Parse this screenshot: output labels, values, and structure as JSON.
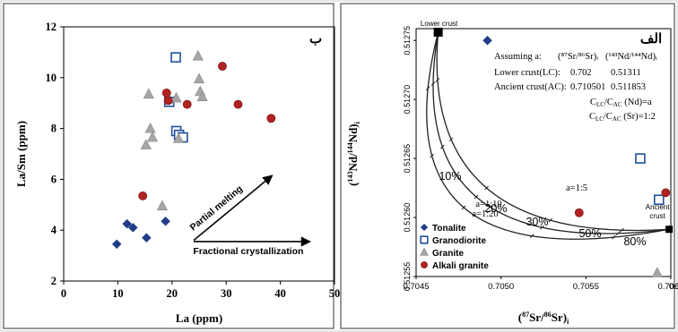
{
  "chart_data": [
    {
      "type": "scatter",
      "panel_label": "ب",
      "xlabel": "La (ppm)",
      "ylabel": "La/Sm (ppm)",
      "xlim": [
        0,
        50
      ],
      "ylim": [
        2,
        12
      ],
      "x_ticks": [
        "0",
        "10",
        "20",
        "30",
        "40",
        "50"
      ],
      "y_ticks": [
        "2",
        "4",
        "6",
        "8",
        "10",
        "12"
      ],
      "series": [
        {
          "marker": "filled-diamond",
          "color": "#1f3c88",
          "points": [
            [
              9.8,
              3.45
            ],
            [
              11.7,
              4.25
            ],
            [
              12.8,
              4.1
            ],
            [
              15.3,
              3.7
            ],
            [
              18.8,
              4.35
            ]
          ]
        },
        {
          "marker": "open-square",
          "color": "#1f4f9e",
          "points": [
            [
              19.5,
              9.05
            ],
            [
              20.7,
              10.8
            ],
            [
              20.8,
              7.9
            ],
            [
              21.3,
              7.75
            ],
            [
              22.0,
              7.65
            ]
          ]
        },
        {
          "marker": "grey-triangle",
          "color": "#a6a6a6",
          "points": [
            [
              15.7,
              9.35
            ],
            [
              16.0,
              8.0
            ],
            [
              15.2,
              7.35
            ],
            [
              16.4,
              7.65
            ],
            [
              18.2,
              4.95
            ],
            [
              19.4,
              9.15
            ],
            [
              20.8,
              9.2
            ],
            [
              21.2,
              7.6
            ],
            [
              24.8,
              10.85
            ],
            [
              25.0,
              9.95
            ],
            [
              25.2,
              9.45
            ],
            [
              25.6,
              9.25
            ]
          ]
        },
        {
          "marker": "red-circle",
          "color": "#b22222",
          "points": [
            [
              14.6,
              5.35
            ],
            [
              19.0,
              9.4
            ],
            [
              19.3,
              9.1
            ],
            [
              22.8,
              8.95
            ],
            [
              29.3,
              10.45
            ],
            [
              32.2,
              8.95
            ],
            [
              38.3,
              8.4
            ]
          ]
        }
      ],
      "annotations": [
        {
          "text": "Partial melting",
          "arrow_from": [
            24,
            3.6
          ],
          "arrow_to": [
            38.5,
            6.15
          ]
        },
        {
          "text": "Fractional crystallization",
          "arrow_from": [
            24,
            3.55
          ],
          "arrow_to": [
            45.5,
            3.55
          ]
        }
      ]
    },
    {
      "type": "scatter",
      "panel_label": "الف",
      "xlabel_main": "(",
      "xlabel_iso": "87",
      "xlabel_el": "Sr/",
      "xlabel_iso2": "86",
      "xlabel_el2": "Sr)",
      "xlabel_sub": "i",
      "ylabel_main": "(",
      "ylabel_iso": "143",
      "ylabel_el": "Nd/",
      "ylabel_iso2": "144",
      "ylabel_el2": "Nd)",
      "ylabel_sub": "i",
      "xlim": [
        0.7045,
        0.706
      ],
      "ylim": [
        0.51255,
        0.51276
      ],
      "x_ticks": [
        "0.7045",
        "0.7050",
        "0.7055",
        "0.7060",
        "0.706"
      ],
      "y_ticks": [
        "0.51255",
        "0.51260",
        "0.51265",
        "0.51270",
        "0.51275"
      ],
      "end_members": [
        {
          "name": "Lower crust",
          "x": 0.70463,
          "y": 0.512757
        },
        {
          "name": "Ancient crust",
          "x": 0.70599,
          "y": 0.51259
        }
      ],
      "mixing_curves": [
        {
          "label": "a=1:20",
          "bend": 0.18
        },
        {
          "label": "a=1:10",
          "bend": 0.38
        },
        {
          "label": "a=1:5",
          "bend": 0.62
        }
      ],
      "percent_labels": [
        "10%",
        "20%",
        "30%",
        "50%",
        "80%"
      ],
      "assumptions": {
        "heading": "Assuming a:",
        "col1": "(⁸⁷Sr/⁸⁶Sr)ᵢ",
        "col2": "(¹⁴³Nd/¹⁴⁴Nd)ᵢ",
        "lc_label": "Lower crust(LC):",
        "lc_sr": "0.702",
        "lc_nd": "0.51311",
        "ac_label": "Ancient crust(AC):",
        "ac_sr": "0.710501",
        "ac_nd": "0.511853",
        "ratio1": "Cₗₒ/Cₐₒ (Nd)=a",
        "ratio2": "Cₗₒ/Cₐₒ (Sr)=1:2"
      },
      "ratio_parts": {
        "c": "C",
        "lc": "LC",
        "slash": "/C",
        "ac": "AC",
        "nd_tail": " (Nd)=a",
        "sr_tail": " (Sr)=1:2"
      },
      "series": [
        {
          "marker": "filled-diamond",
          "color": "#1f3c88",
          "points": [
            [
              0.70492,
              0.51275
            ]
          ]
        },
        {
          "marker": "open-square",
          "color": "#1f4f9e",
          "points": [
            [
              0.70582,
              0.51265
            ],
            [
              0.70593,
              0.512615
            ]
          ]
        },
        {
          "marker": "grey-triangle",
          "color": "#a6a6a6",
          "points": [
            [
              0.70592,
              0.512553
            ]
          ]
        },
        {
          "marker": "red-circle",
          "color": "#b22222",
          "points": [
            [
              0.70546,
              0.512604
            ],
            [
              0.70597,
              0.512621
            ]
          ]
        }
      ],
      "legend": [
        {
          "name": "Tonalite",
          "marker": "filled-diamond"
        },
        {
          "name": "Granodiorite",
          "marker": "open-square"
        },
        {
          "name": "Granite",
          "marker": "grey-triangle"
        },
        {
          "name": "Alkali granite",
          "marker": "red-circle"
        }
      ]
    }
  ]
}
